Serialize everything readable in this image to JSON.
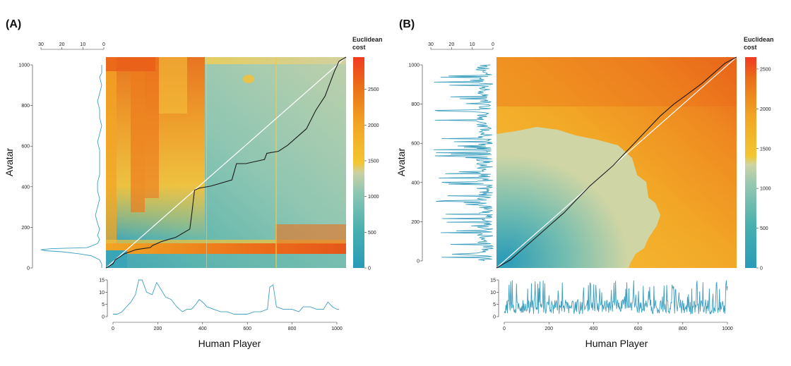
{
  "chart_data": [
    {
      "type": "heatmap",
      "panel_label": "(A)",
      "xlabel": "Human Player",
      "ylabel": "Avatar",
      "colorbar_title": [
        "Euclidean",
        "cost"
      ],
      "colorbar_ticks": [
        0,
        500,
        1000,
        1500,
        2000,
        2500
      ],
      "colorbar_range": [
        0,
        2950
      ],
      "xlim": [
        0,
        1030
      ],
      "ylim": [
        0,
        1030
      ],
      "x_ticks": [
        0,
        200,
        400,
        600,
        800,
        1000
      ],
      "y_ticks": [
        0,
        200,
        400,
        600,
        800,
        1000
      ],
      "grid": false,
      "warping_path": [
        [
          0,
          0
        ],
        [
          30,
          20
        ],
        [
          40,
          40
        ],
        [
          80,
          70
        ],
        [
          130,
          90
        ],
        [
          190,
          100
        ],
        [
          200,
          110
        ],
        [
          240,
          130
        ],
        [
          300,
          150
        ],
        [
          360,
          190
        ],
        [
          370,
          280
        ],
        [
          380,
          380
        ],
        [
          400,
          390
        ],
        [
          450,
          400
        ],
        [
          540,
          430
        ],
        [
          560,
          510
        ],
        [
          600,
          510
        ],
        [
          680,
          530
        ],
        [
          690,
          560
        ],
        [
          740,
          570
        ],
        [
          780,
          600
        ],
        [
          820,
          640
        ],
        [
          860,
          680
        ],
        [
          900,
          770
        ],
        [
          940,
          840
        ],
        [
          960,
          900
        ],
        [
          980,
          960
        ],
        [
          1000,
          1010
        ],
        [
          1030,
          1030
        ]
      ],
      "bottom_series": {
        "x": [
          0,
          20,
          40,
          60,
          80,
          100,
          115,
          130,
          150,
          175,
          195,
          215,
          235,
          260,
          285,
          310,
          330,
          350,
          370,
          385,
          400,
          420,
          450,
          480,
          510,
          540,
          570,
          600,
          630,
          660,
          690,
          700,
          715,
          730,
          760,
          800,
          830,
          850,
          880,
          910,
          940,
          960,
          980,
          1000,
          1010
        ],
        "y": [
          1,
          1,
          2,
          4,
          6,
          9,
          15,
          15,
          10,
          9,
          14,
          11,
          8,
          7,
          4,
          2,
          3,
          3,
          5,
          7,
          6,
          4,
          3,
          2,
          2,
          1,
          1,
          1,
          2,
          2,
          3,
          12,
          13,
          4,
          3,
          3,
          2,
          4,
          4,
          3,
          3,
          6,
          4,
          3,
          3
        ],
        "ylim": [
          0,
          15
        ],
        "y_ticks": [
          0,
          5,
          10,
          15
        ],
        "x_ticks": [
          0,
          200,
          400,
          600,
          800,
          1000
        ]
      },
      "left_series": {
        "y": [
          0,
          20,
          40,
          60,
          70,
          80,
          85,
          90,
          95,
          100,
          120,
          140,
          160,
          190,
          220,
          260,
          300,
          340,
          380,
          420,
          460,
          500,
          540,
          580,
          620,
          660,
          700,
          740,
          780,
          820,
          860,
          900,
          940,
          960,
          980,
          1000
        ],
        "x": [
          1,
          1,
          2,
          6,
          12,
          20,
          28,
          30,
          25,
          8,
          3,
          2,
          3,
          2,
          3,
          4,
          3,
          2,
          3,
          3,
          2,
          2,
          2,
          2,
          3,
          2,
          1,
          2,
          2,
          3,
          2,
          1,
          2,
          1,
          1,
          1
        ],
        "xlim": [
          30,
          0
        ],
        "x_ticks": [
          30,
          20,
          10,
          0
        ],
        "y_ticks": [
          0,
          200,
          400,
          600,
          800,
          1000
        ]
      }
    },
    {
      "type": "heatmap",
      "panel_label": "(B)",
      "xlabel": "Human Player",
      "ylabel": "Avatar",
      "colorbar_title": [
        "Euclidean",
        "cost"
      ],
      "colorbar_ticks": [
        0,
        500,
        1000,
        1500,
        2000,
        2500
      ],
      "colorbar_range": [
        0,
        2650
      ],
      "xlim": [
        0,
        1030
      ],
      "ylim": [
        0,
        1030
      ],
      "x_ticks": [
        0,
        200,
        400,
        600,
        800,
        1000
      ],
      "y_ticks": [
        0,
        200,
        400,
        600,
        800,
        1000
      ],
      "grid": false,
      "warping_path": [
        [
          0,
          0
        ],
        [
          60,
          40
        ],
        [
          120,
          100
        ],
        [
          170,
          150
        ],
        [
          230,
          210
        ],
        [
          290,
          270
        ],
        [
          340,
          330
        ],
        [
          400,
          400
        ],
        [
          450,
          450
        ],
        [
          500,
          500
        ],
        [
          550,
          560
        ],
        [
          600,
          620
        ],
        [
          650,
          680
        ],
        [
          700,
          740
        ],
        [
          760,
          800
        ],
        [
          820,
          850
        ],
        [
          880,
          900
        ],
        [
          930,
          950
        ],
        [
          980,
          1000
        ],
        [
          1030,
          1030
        ]
      ],
      "bottom_series": {
        "n_points": 1000,
        "y_range": [
          0,
          15
        ],
        "ylim": [
          0,
          15
        ],
        "y_ticks": [
          0,
          5,
          10,
          15
        ],
        "x_ticks": [
          0,
          200,
          400,
          600,
          800,
          1000
        ]
      },
      "left_series": {
        "n_points": 1000,
        "x_range": [
          0,
          30
        ],
        "xlim": [
          30,
          0
        ],
        "x_ticks": [
          30,
          20,
          10,
          0
        ],
        "y_ticks": [
          0,
          200,
          400,
          600,
          800,
          1000
        ]
      }
    }
  ]
}
